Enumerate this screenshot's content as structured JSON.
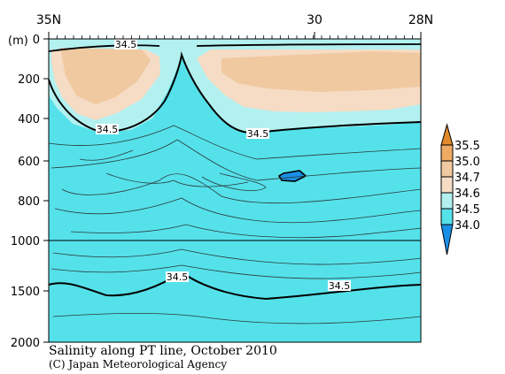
{
  "chart_data": {
    "type": "heatmap",
    "title": "Salinity along PT line, October 2010",
    "credit": "(C) Japan Meteorological Agency",
    "x_axis": {
      "direction": "north-to-south",
      "ticks": [
        {
          "value": 35,
          "label": "35N"
        },
        {
          "value": 30,
          "label": "30"
        },
        {
          "value": 28,
          "label": "28N"
        }
      ],
      "range": [
        35,
        28
      ]
    },
    "y_axis": {
      "unit_label": "(m)",
      "ticks": [
        {
          "value": 0,
          "label": "0"
        },
        {
          "value": 200,
          "label": "200"
        },
        {
          "value": 400,
          "label": "400"
        },
        {
          "value": 600,
          "label": "600"
        },
        {
          "value": 800,
          "label": "800"
        },
        {
          "value": 1000,
          "label": "1000"
        },
        {
          "value": 1500,
          "label": "1500"
        },
        {
          "value": 2000,
          "label": "2000"
        }
      ],
      "range": [
        0,
        2000
      ],
      "scale": "piecewise-linear (0-1000 stretched, 1000-2000 compressed)"
    },
    "colorbar": {
      "levels": [
        "35.5",
        "35.0",
        "34.7",
        "34.6",
        "34.5",
        "34.0"
      ],
      "colors": {
        "above_35.5": "#e08a2c",
        "35.0_35.5": "#eeab64",
        "34.7_35.0": "#f0c9a0",
        "34.6_34.7": "#f6dcc4",
        "34.5_34.6": "#b3f0f0",
        "34.0_34.5": "#55e1ea",
        "below_34.0": "#1a8fe6"
      }
    },
    "contour_labels": [
      "34.5",
      "34.5",
      "34.5",
      "34.5",
      "34.5"
    ],
    "reference_line_depth": 1000
  }
}
